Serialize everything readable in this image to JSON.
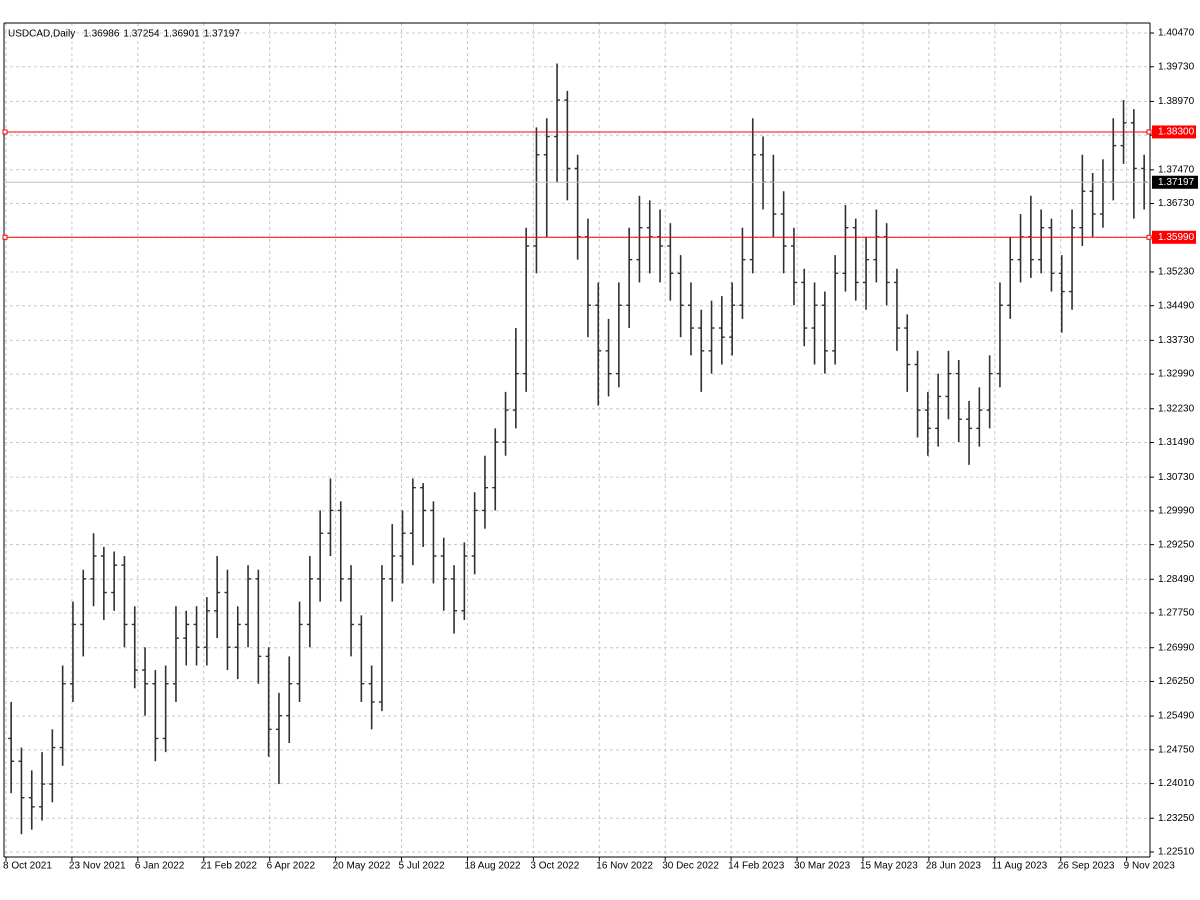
{
  "chart_data": {
    "type": "ohlc",
    "title": "USDCAD,Daily",
    "ohlc_header": [
      1.36986,
      1.37254,
      1.36901,
      1.37197
    ],
    "color": "#303030",
    "grid": true,
    "xlim": [
      0,
      111
    ],
    "xticks": [
      {
        "value": 0,
        "label": "8 Oct 2021"
      },
      {
        "value": 6.4,
        "label": "23 Nov 2021"
      },
      {
        "value": 12.8,
        "label": "6 Jan 2022"
      },
      {
        "value": 19.2,
        "label": "21 Feb 2022"
      },
      {
        "value": 25.6,
        "label": "6 Apr 2022"
      },
      {
        "value": 32,
        "label": "20 May 2022"
      },
      {
        "value": 38.4,
        "label": "5 Jul 2022"
      },
      {
        "value": 44.8,
        "label": "18 Aug 2022"
      },
      {
        "value": 51.2,
        "label": "3 Oct 2022"
      },
      {
        "value": 57.6,
        "label": "16 Nov 2022"
      },
      {
        "value": 64,
        "label": "30 Dec 2022"
      },
      {
        "value": 70.4,
        "label": "14 Feb 2023"
      },
      {
        "value": 76.8,
        "label": "30 Mar 2023"
      },
      {
        "value": 83.2,
        "label": "15 May 2023"
      },
      {
        "value": 89.6,
        "label": "28 Jun 2023"
      },
      {
        "value": 96,
        "label": "11 Aug 2023"
      },
      {
        "value": 102.4,
        "label": "26 Sep 2023"
      },
      {
        "value": 108.8,
        "label": "9 Nov 2023"
      }
    ],
    "ylim": [
      1.2251,
      1.4047
    ],
    "yticks": [
      {
        "value": 1.4047,
        "label": "1.40470"
      },
      {
        "value": 1.3973,
        "label": "1.39730"
      },
      {
        "value": 1.3897,
        "label": "1.38970"
      },
      {
        "value": 1.3823,
        "label": "1.38230"
      },
      {
        "value": 1.3747,
        "label": "1.37470"
      },
      {
        "value": 1.3673,
        "label": "1.36730"
      },
      {
        "value": 1.3599,
        "label": "1.35990"
      },
      {
        "value": 1.3523,
        "label": "1.35230"
      },
      {
        "value": 1.3449,
        "label": "1.34490"
      },
      {
        "value": 1.3373,
        "label": "1.33730"
      },
      {
        "value": 1.3299,
        "label": "1.32990"
      },
      {
        "value": 1.3223,
        "label": "1.32230"
      },
      {
        "value": 1.3149,
        "label": "1.31490"
      },
      {
        "value": 1.3073,
        "label": "1.30730"
      },
      {
        "value": 1.2999,
        "label": "1.29990"
      },
      {
        "value": 1.2925,
        "label": "1.29250"
      },
      {
        "value": 1.2849,
        "label": "1.28490"
      },
      {
        "value": 1.2775,
        "label": "1.27750"
      },
      {
        "value": 1.2699,
        "label": "1.26990"
      },
      {
        "value": 1.2625,
        "label": "1.26250"
      },
      {
        "value": 1.2549,
        "label": "1.25490"
      },
      {
        "value": 1.2475,
        "label": "1.24750"
      },
      {
        "value": 1.2401,
        "label": "1.24010"
      },
      {
        "value": 1.2325,
        "label": "1.23250"
      },
      {
        "value": 1.2251,
        "label": "1.22510"
      }
    ],
    "levels": [
      {
        "value": 1.383,
        "label": "1.38300",
        "color": "#ff0000"
      },
      {
        "value": 1.3599,
        "label": "1.35990",
        "color": "#ff0000"
      }
    ],
    "current_price": {
      "value": 1.37197,
      "color": "#000000",
      "line_color": "#c0c0c0"
    },
    "open": [
      1.25,
      1.245,
      1.237,
      1.235,
      1.24,
      1.248,
      1.262,
      1.275,
      1.285,
      1.29,
      1.282,
      1.288,
      1.275,
      1.265,
      1.262,
      1.25,
      1.262,
      1.272,
      1.275,
      1.27,
      1.278,
      1.282,
      1.27,
      1.275,
      1.285,
      1.268,
      1.252,
      1.255,
      1.262,
      1.275,
      1.285,
      1.295,
      1.3,
      1.285,
      1.275,
      1.262,
      1.258,
      1.285,
      1.29,
      1.295,
      1.305,
      1.3,
      1.29,
      1.285,
      1.278,
      1.29,
      1.3,
      1.305,
      1.315,
      1.322,
      1.33,
      1.358,
      1.378,
      1.382,
      1.39,
      1.375,
      1.36,
      1.345,
      1.335,
      1.33,
      1.345,
      1.355,
      1.362,
      1.36,
      1.358,
      1.352,
      1.345,
      1.34,
      1.335,
      1.34,
      1.338,
      1.345,
      1.355,
      1.378,
      1.372,
      1.365,
      1.358,
      1.35,
      1.34,
      1.345,
      1.335,
      1.352,
      1.362,
      1.35,
      1.355,
      1.36,
      1.35,
      1.34,
      1.332,
      1.322,
      1.318,
      1.325,
      1.33,
      1.32,
      1.318,
      1.322,
      1.33,
      1.345,
      1.355,
      1.36,
      1.355,
      1.362,
      1.352,
      1.348,
      1.362,
      1.37,
      1.365,
      1.372,
      1.38,
      1.385,
      1.375
    ],
    "high": [
      1.258,
      1.248,
      1.243,
      1.247,
      1.252,
      1.266,
      1.28,
      1.287,
      1.295,
      1.292,
      1.291,
      1.29,
      1.279,
      1.27,
      1.265,
      1.266,
      1.279,
      1.278,
      1.279,
      1.281,
      1.29,
      1.287,
      1.279,
      1.288,
      1.287,
      1.27,
      1.26,
      1.268,
      1.28,
      1.29,
      1.3,
      1.307,
      1.302,
      1.288,
      1.277,
      1.266,
      1.288,
      1.297,
      1.3,
      1.307,
      1.306,
      1.302,
      1.294,
      1.288,
      1.293,
      1.304,
      1.312,
      1.318,
      1.326,
      1.34,
      1.362,
      1.384,
      1.386,
      1.398,
      1.392,
      1.378,
      1.364,
      1.35,
      1.342,
      1.35,
      1.362,
      1.369,
      1.368,
      1.366,
      1.363,
      1.356,
      1.35,
      1.344,
      1.346,
      1.347,
      1.35,
      1.362,
      1.386,
      1.382,
      1.378,
      1.37,
      1.362,
      1.353,
      1.35,
      1.348,
      1.356,
      1.367,
      1.364,
      1.36,
      1.366,
      1.363,
      1.353,
      1.343,
      1.335,
      1.326,
      1.33,
      1.335,
      1.333,
      1.324,
      1.327,
      1.334,
      1.35,
      1.36,
      1.365,
      1.369,
      1.366,
      1.364,
      1.356,
      1.366,
      1.378,
      1.374,
      1.377,
      1.386,
      1.39,
      1.388,
      1.378
    ],
    "low": [
      1.238,
      1.229,
      1.23,
      1.232,
      1.236,
      1.244,
      1.258,
      1.268,
      1.279,
      1.276,
      1.278,
      1.27,
      1.261,
      1.255,
      1.245,
      1.247,
      1.258,
      1.266,
      1.266,
      1.266,
      1.272,
      1.265,
      1.263,
      1.27,
      1.262,
      1.246,
      1.24,
      1.249,
      1.258,
      1.27,
      1.28,
      1.29,
      1.28,
      1.268,
      1.258,
      1.252,
      1.256,
      1.28,
      1.284,
      1.288,
      1.292,
      1.284,
      1.278,
      1.273,
      1.276,
      1.286,
      1.296,
      1.3,
      1.312,
      1.318,
      1.326,
      1.352,
      1.36,
      1.372,
      1.368,
      1.355,
      1.338,
      1.323,
      1.325,
      1.327,
      1.34,
      1.35,
      1.352,
      1.35,
      1.346,
      1.338,
      1.334,
      1.326,
      1.33,
      1.332,
      1.334,
      1.342,
      1.352,
      1.366,
      1.36,
      1.352,
      1.345,
      1.336,
      1.332,
      1.33,
      1.332,
      1.348,
      1.346,
      1.344,
      1.35,
      1.345,
      1.335,
      1.326,
      1.316,
      1.312,
      1.314,
      1.32,
      1.315,
      1.31,
      1.314,
      1.318,
      1.327,
      1.342,
      1.35,
      1.351,
      1.352,
      1.348,
      1.339,
      1.344,
      1.358,
      1.36,
      1.362,
      1.368,
      1.376,
      1.364,
      1.366
    ],
    "close": [
      1.245,
      1.237,
      1.235,
      1.24,
      1.248,
      1.262,
      1.275,
      1.285,
      1.29,
      1.282,
      1.288,
      1.275,
      1.265,
      1.262,
      1.25,
      1.262,
      1.272,
      1.275,
      1.27,
      1.278,
      1.282,
      1.27,
      1.275,
      1.285,
      1.268,
      1.252,
      1.255,
      1.262,
      1.275,
      1.285,
      1.295,
      1.3,
      1.285,
      1.275,
      1.262,
      1.258,
      1.285,
      1.29,
      1.295,
      1.305,
      1.3,
      1.29,
      1.285,
      1.278,
      1.29,
      1.3,
      1.305,
      1.315,
      1.322,
      1.33,
      1.358,
      1.378,
      1.382,
      1.39,
      1.375,
      1.36,
      1.345,
      1.335,
      1.33,
      1.345,
      1.355,
      1.362,
      1.36,
      1.358,
      1.352,
      1.345,
      1.34,
      1.335,
      1.34,
      1.338,
      1.345,
      1.355,
      1.378,
      1.372,
      1.365,
      1.358,
      1.35,
      1.34,
      1.345,
      1.335,
      1.352,
      1.362,
      1.35,
      1.355,
      1.36,
      1.35,
      1.34,
      1.332,
      1.322,
      1.318,
      1.325,
      1.33,
      1.32,
      1.318,
      1.322,
      1.33,
      1.345,
      1.355,
      1.36,
      1.355,
      1.362,
      1.352,
      1.348,
      1.362,
      1.37,
      1.365,
      1.372,
      1.38,
      1.385,
      1.375,
      1.372
    ]
  }
}
